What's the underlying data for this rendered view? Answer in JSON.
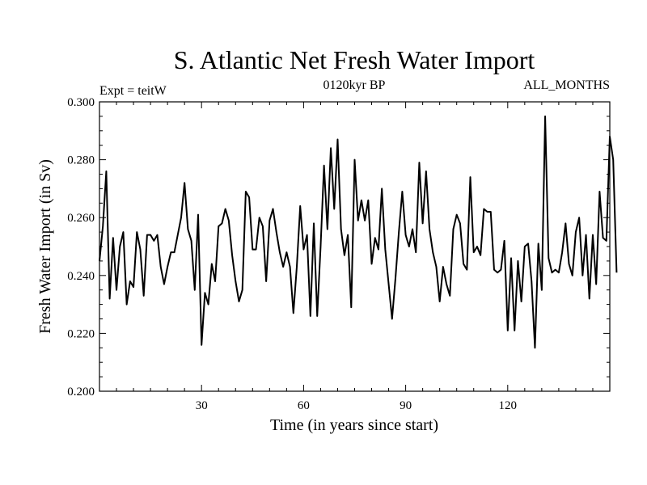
{
  "chart_data": {
    "type": "line",
    "title": "S. Atlantic Net Fresh Water Import",
    "subtitle_left": "Expt = teitW",
    "subtitle_center": "0120kyr BP",
    "subtitle_right": "ALL_MONTHS",
    "xlabel": "Time (in years since start)",
    "ylabel": "Fresh Water Import (in Sv)",
    "xlim": [
      0,
      150
    ],
    "ylim": [
      0.2,
      0.3
    ],
    "x_ticks": [
      30,
      60,
      90,
      120
    ],
    "x_tick_labels": [
      "30",
      "60",
      "90",
      "120"
    ],
    "y_ticks": [
      0.2,
      0.22,
      0.24,
      0.26,
      0.28,
      0.3
    ],
    "y_tick_labels": [
      "0.200",
      "0.220",
      "0.240",
      "0.260",
      "0.280",
      "0.300"
    ],
    "x_start": 0,
    "x_step": 1,
    "series": [
      {
        "name": "Fresh Water Import",
        "color": "#000000",
        "values": [
          0.245,
          0.257,
          0.276,
          0.232,
          0.253,
          0.235,
          0.25,
          0.255,
          0.23,
          0.238,
          0.236,
          0.255,
          0.249,
          0.233,
          0.254,
          0.254,
          0.252,
          0.254,
          0.243,
          0.237,
          0.243,
          0.248,
          0.248,
          0.254,
          0.26,
          0.272,
          0.256,
          0.252,
          0.235,
          0.261,
          0.216,
          0.234,
          0.23,
          0.244,
          0.238,
          0.257,
          0.258,
          0.263,
          0.259,
          0.247,
          0.238,
          0.231,
          0.235,
          0.269,
          0.267,
          0.249,
          0.249,
          0.26,
          0.257,
          0.238,
          0.259,
          0.263,
          0.255,
          0.248,
          0.243,
          0.248,
          0.243,
          0.227,
          0.243,
          0.264,
          0.249,
          0.254,
          0.226,
          0.258,
          0.226,
          0.25,
          0.278,
          0.256,
          0.284,
          0.263,
          0.287,
          0.256,
          0.247,
          0.254,
          0.229,
          0.28,
          0.259,
          0.266,
          0.259,
          0.266,
          0.244,
          0.253,
          0.249,
          0.27,
          0.249,
          0.237,
          0.225,
          0.239,
          0.255,
          0.269,
          0.254,
          0.25,
          0.256,
          0.248,
          0.279,
          0.258,
          0.276,
          0.256,
          0.248,
          0.243,
          0.231,
          0.243,
          0.237,
          0.233,
          0.256,
          0.261,
          0.258,
          0.244,
          0.242,
          0.274,
          0.248,
          0.25,
          0.247,
          0.263,
          0.262,
          0.262,
          0.242,
          0.241,
          0.242,
          0.252,
          0.221,
          0.246,
          0.221,
          0.245,
          0.231,
          0.25,
          0.251,
          0.238,
          0.215,
          0.251,
          0.235,
          0.295,
          0.246,
          0.241,
          0.242,
          0.241,
          0.248,
          0.258,
          0.244,
          0.24,
          0.255,
          0.26,
          0.24,
          0.254,
          0.232,
          0.254,
          0.237,
          0.269,
          0.253,
          0.252,
          0.288,
          0.28,
          0.241
        ]
      }
    ]
  }
}
